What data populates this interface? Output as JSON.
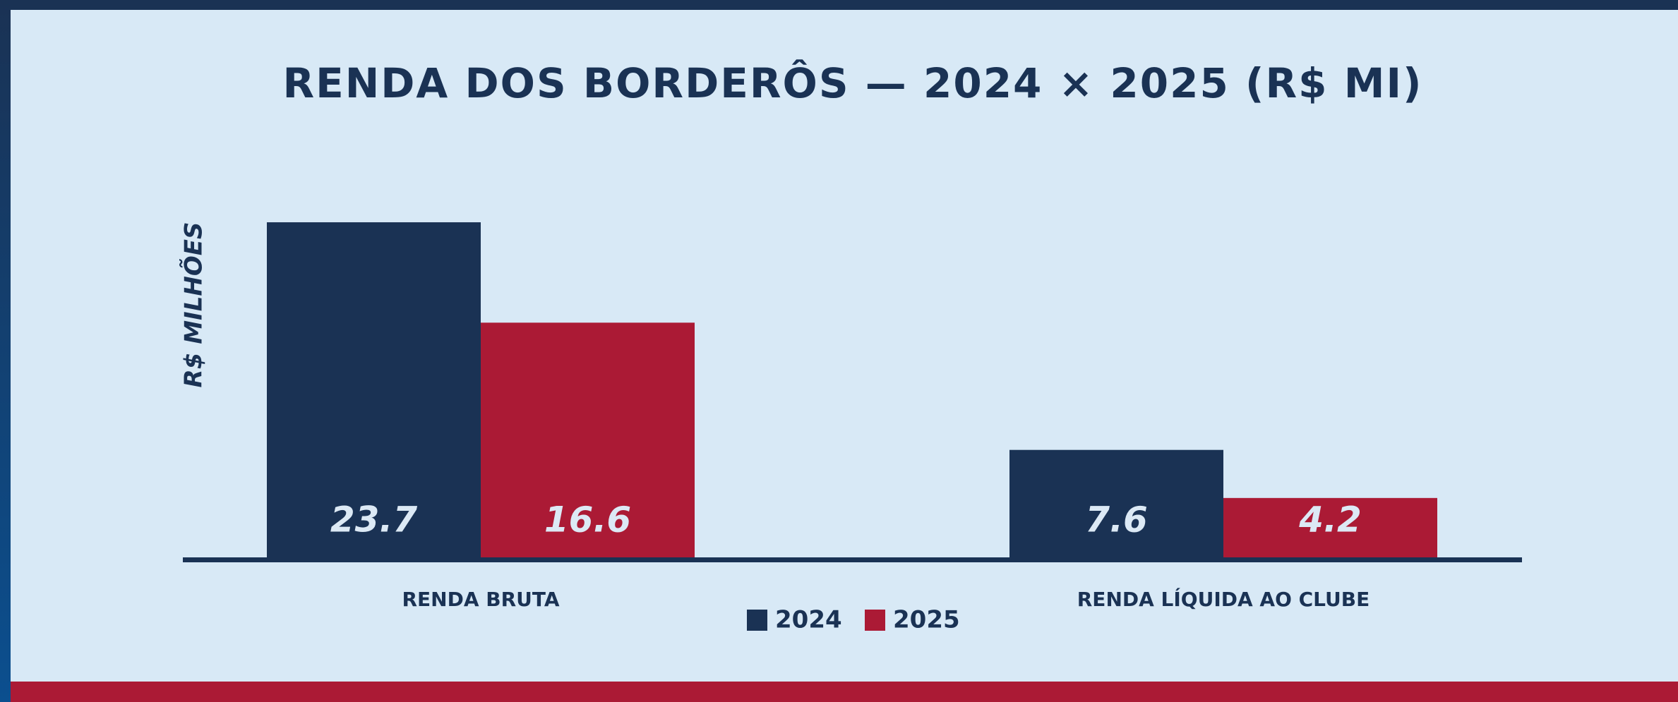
{
  "chart_data": {
    "type": "bar",
    "title": "RENDA DOS BORDERÔS — 2024 × 2025 (R$ MI)",
    "y_label": "R$ MILHÕES",
    "categories": [
      "RENDA BRUTA",
      "RENDA LÍQUIDA AO CLUBE"
    ],
    "series": [
      {
        "name": "2024",
        "color": "#1a3254",
        "values": [
          23.7,
          7.6
        ]
      },
      {
        "name": "2025",
        "color": "#ab1a35",
        "values": [
          16.6,
          4.2
        ]
      }
    ],
    "ylim": [
      0,
      25
    ],
    "legend": "bottom"
  }
}
